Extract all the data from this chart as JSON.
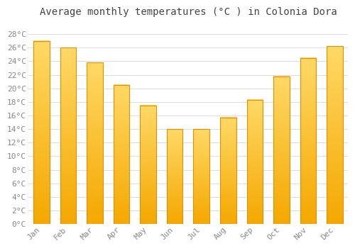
{
  "title": "Average monthly temperatures (°C ) in Colonia Dora",
  "months": [
    "Jan",
    "Feb",
    "Mar",
    "Apr",
    "May",
    "Jun",
    "Jul",
    "Aug",
    "Sep",
    "Oct",
    "Nov",
    "Dec"
  ],
  "values": [
    27.0,
    26.0,
    23.8,
    20.5,
    17.5,
    14.0,
    14.0,
    15.7,
    18.3,
    21.8,
    24.5,
    26.2
  ],
  "bar_color_bottom": "#F5A800",
  "bar_color_top": "#FFD966",
  "ylim": [
    0,
    30
  ],
  "yticks": [
    0,
    2,
    4,
    6,
    8,
    10,
    12,
    14,
    16,
    18,
    20,
    22,
    24,
    26,
    28
  ],
  "ytick_labels": [
    "0°C",
    "2°C",
    "4°C",
    "6°C",
    "8°C",
    "10°C",
    "12°C",
    "14°C",
    "16°C",
    "18°C",
    "20°C",
    "22°C",
    "24°C",
    "26°C",
    "28°C"
  ],
  "bg_color": "#ffffff",
  "plot_bg_color": "#ffffff",
  "grid_color": "#dddddd",
  "title_fontsize": 10,
  "tick_fontsize": 8,
  "tick_color": "#888888",
  "bar_width": 0.6,
  "bar_edge_color": "#E09000",
  "bar_edge_width": 0.8
}
